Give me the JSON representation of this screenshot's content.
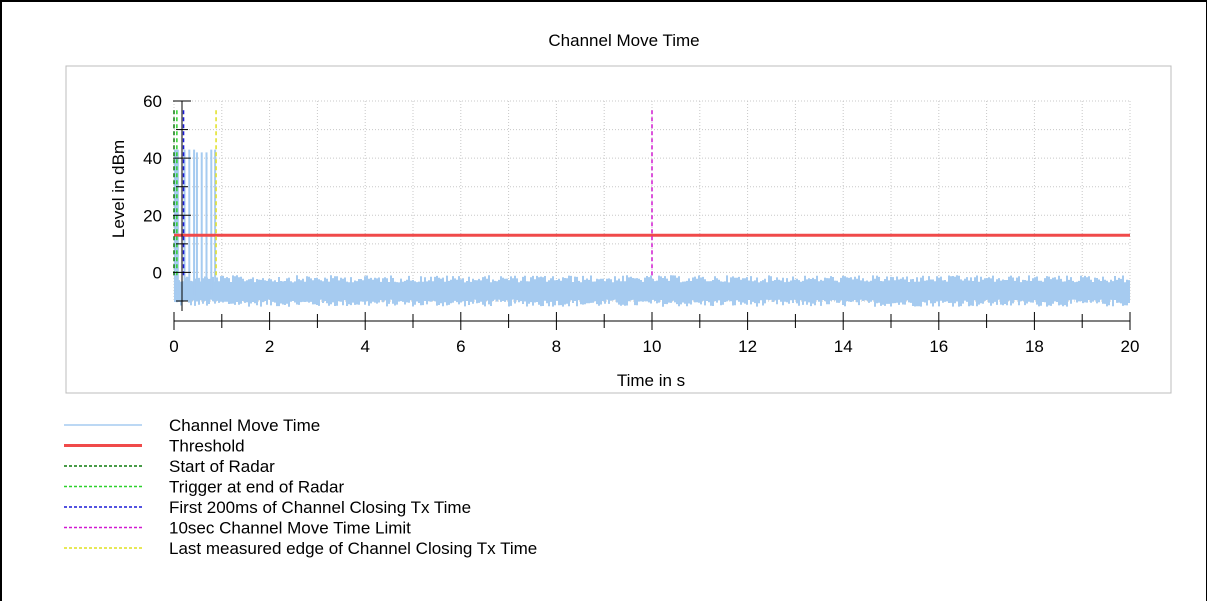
{
  "chart_data": {
    "type": "line",
    "title": "Channel Move Time",
    "xlabel": "Time in s",
    "ylabel": "Level in dBm",
    "xlim": [
      0,
      20
    ],
    "ylim": [
      -10,
      60
    ],
    "x_ticks": [
      0,
      2,
      4,
      6,
      8,
      10,
      12,
      14,
      16,
      18,
      20
    ],
    "y_ticks": [
      0,
      20,
      40,
      60
    ],
    "grid": true,
    "legend_position": "bottom",
    "colors": {
      "trace": "#a6cbf0",
      "threshold": "#f04a4a",
      "start_radar": "#0b7a0b",
      "trigger_end": "#2cd12c",
      "first_200ms": "#1a1ad6",
      "limit_10s": "#d11ad1",
      "last_edge": "#e0e021"
    },
    "series": [
      {
        "name": "Channel Move Time",
        "kind": "noise_trace",
        "noise_floor_range": [
          -12,
          -1
        ],
        "bursts": [
          {
            "x": 0.02,
            "y": 43
          },
          {
            "x": 0.05,
            "y": 43
          },
          {
            "x": 0.08,
            "y": 43
          },
          {
            "x": 0.22,
            "y": 43
          },
          {
            "x": 0.32,
            "y": 43
          },
          {
            "x": 0.42,
            "y": 43
          },
          {
            "x": 0.48,
            "y": 42
          },
          {
            "x": 0.58,
            "y": 42
          },
          {
            "x": 0.68,
            "y": 42
          },
          {
            "x": 0.78,
            "y": 43
          },
          {
            "x": 0.86,
            "y": 43
          }
        ]
      },
      {
        "name": "Threshold",
        "kind": "hline",
        "y": 13
      },
      {
        "name": "Start of Radar",
        "kind": "vline",
        "x": 0.0,
        "y_top": 57
      },
      {
        "name": "Trigger at end of Radar",
        "kind": "vline",
        "x": 0.06,
        "y_top": 57
      },
      {
        "name": "First 200ms of Channel Closing Tx Time",
        "kind": "vline",
        "x": 0.2,
        "y_top": 57
      },
      {
        "name": "10sec Channel Move Time Limit",
        "kind": "vline",
        "x": 10.0,
        "y_top": 57
      },
      {
        "name": "Last measured edge of Channel Closing Tx Time",
        "kind": "vline",
        "x": 0.88,
        "y_top": 57
      }
    ],
    "legend": [
      {
        "label": "Channel Move Time",
        "style": "solid-thin",
        "color_key": "trace"
      },
      {
        "label": "Threshold",
        "style": "solid-thick",
        "color_key": "threshold"
      },
      {
        "label": "Start of Radar",
        "style": "dashed",
        "color_key": "start_radar"
      },
      {
        "label": "Trigger at end of Radar",
        "style": "dashed",
        "color_key": "trigger_end"
      },
      {
        "label": "First 200ms of Channel Closing Tx Time",
        "style": "dashed",
        "color_key": "first_200ms"
      },
      {
        "label": "10sec Channel Move Time Limit",
        "style": "dashed",
        "color_key": "limit_10s"
      },
      {
        "label": "Last measured edge of Channel Closing Tx Time",
        "style": "dashed",
        "color_key": "last_edge"
      }
    ]
  }
}
